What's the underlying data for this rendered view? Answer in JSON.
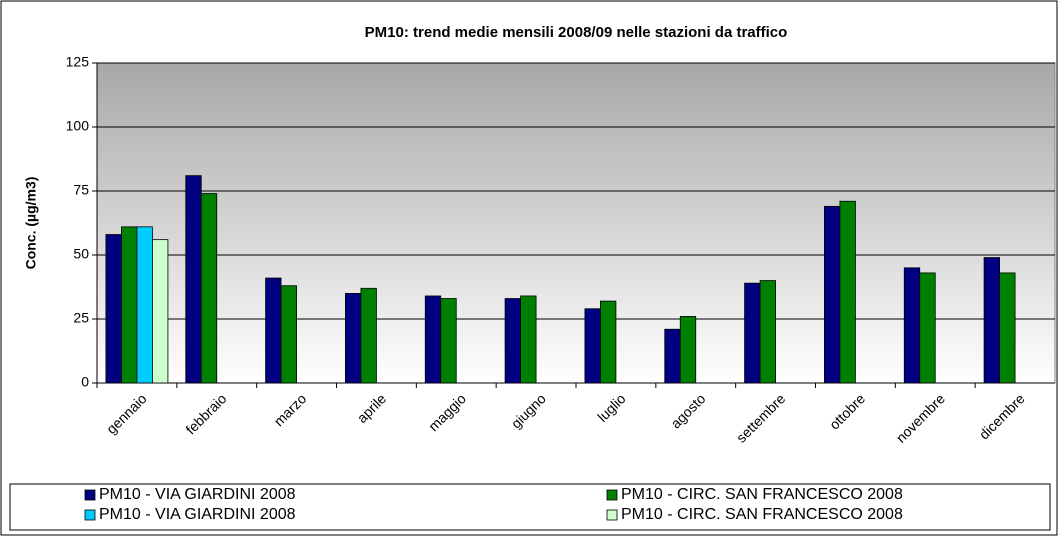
{
  "chart_data": {
    "type": "bar",
    "title": "PM10: trend medie mensili 2008/09 nelle stazioni da traffico",
    "y_label": "Conc. (µg/m3)",
    "categories": [
      "gennaio",
      "febbraio",
      "marzo",
      "aprile",
      "maggio",
      "giugno",
      "luglio",
      "agosto",
      "settembre",
      "ottobre",
      "novembre",
      "dicembre"
    ],
    "series": [
      {
        "name": "PM10 - VIA GIARDINI 2008",
        "color": "#000080",
        "values": [
          58,
          81,
          41,
          35,
          34,
          33,
          29,
          21,
          39,
          69,
          45,
          49
        ]
      },
      {
        "name": "PM10 - CIRC. SAN FRANCESCO 2008",
        "color": "#008000",
        "values": [
          61,
          74,
          38,
          37,
          33,
          34,
          32,
          26,
          40,
          71,
          43,
          43
        ]
      },
      {
        "name": "PM10 - VIA GIARDINI 2008",
        "color": "#00ccff",
        "values": [
          61,
          null,
          null,
          null,
          null,
          null,
          null,
          null,
          null,
          null,
          null,
          null
        ]
      },
      {
        "name": "PM10 - CIRC. SAN FRANCESCO 2008",
        "color": "#ccffcc",
        "values": [
          56,
          null,
          null,
          null,
          null,
          null,
          null,
          null,
          null,
          null,
          null,
          null
        ]
      }
    ],
    "ylim": [
      0,
      125
    ],
    "yticks": [
      0,
      25,
      50,
      75,
      100,
      125
    ],
    "grid": true
  }
}
